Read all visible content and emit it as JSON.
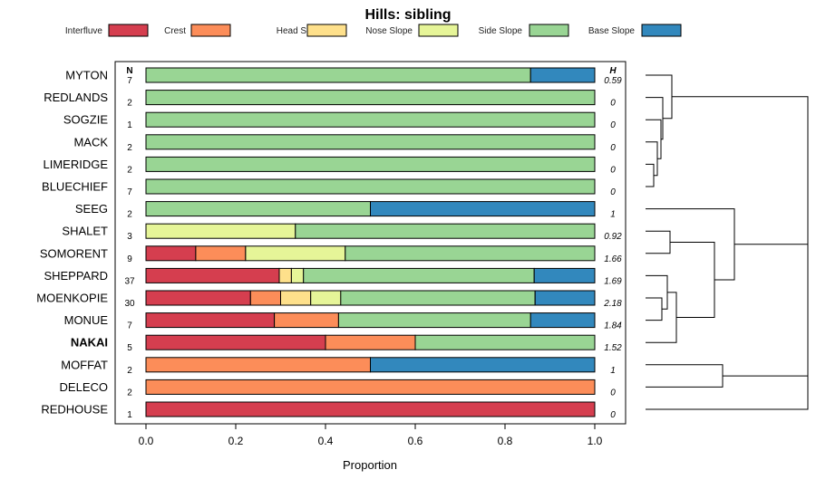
{
  "chart_data": {
    "type": "bar",
    "stacked": true,
    "orientation": "horizontal",
    "title": "Hills: sibling",
    "xlabel": "Proportion",
    "xlim": [
      0,
      1
    ],
    "xticks": [
      "0.0",
      "0.2",
      "0.4",
      "0.6",
      "0.8",
      "1.0"
    ],
    "n_header": "N",
    "h_header": "H",
    "legend": [
      {
        "name": "Interfluve",
        "color": "#D53E4F"
      },
      {
        "name": "Crest",
        "color": "#FC8D59"
      },
      {
        "name": "Head Slope",
        "color": "#FEE08B"
      },
      {
        "name": "Nose Slope",
        "color": "#E6F598"
      },
      {
        "name": "Side Slope",
        "color": "#99D594"
      },
      {
        "name": "Base Slope",
        "color": "#3288BD"
      }
    ],
    "rows": [
      {
        "name": "MYTON",
        "n": "7",
        "h": "0.59",
        "bold": false,
        "values": [
          0,
          0,
          0,
          0,
          0.857,
          0.143
        ]
      },
      {
        "name": "REDLANDS",
        "n": "2",
        "h": "0",
        "bold": false,
        "values": [
          0,
          0,
          0,
          0,
          1,
          0
        ]
      },
      {
        "name": "SOGZIE",
        "n": "1",
        "h": "0",
        "bold": false,
        "values": [
          0,
          0,
          0,
          0,
          1,
          0
        ]
      },
      {
        "name": "MACK",
        "n": "2",
        "h": "0",
        "bold": false,
        "values": [
          0,
          0,
          0,
          0,
          1,
          0
        ]
      },
      {
        "name": "LIMERIDGE",
        "n": "2",
        "h": "0",
        "bold": false,
        "values": [
          0,
          0,
          0,
          0,
          1,
          0
        ]
      },
      {
        "name": "BLUECHIEF",
        "n": "7",
        "h": "0",
        "bold": false,
        "values": [
          0,
          0,
          0,
          0,
          1,
          0
        ]
      },
      {
        "name": "SEEG",
        "n": "2",
        "h": "1",
        "bold": false,
        "values": [
          0,
          0,
          0,
          0,
          0.5,
          0.5
        ]
      },
      {
        "name": "SHALET",
        "n": "3",
        "h": "0.92",
        "bold": false,
        "values": [
          0,
          0,
          0,
          0.333,
          0.667,
          0
        ]
      },
      {
        "name": "SOMORENT",
        "n": "9",
        "h": "1.66",
        "bold": false,
        "values": [
          0.111,
          0.111,
          0,
          0.222,
          0.556,
          0
        ]
      },
      {
        "name": "SHEPPARD",
        "n": "37",
        "h": "1.69",
        "bold": false,
        "values": [
          0.297,
          0,
          0.027,
          0.027,
          0.514,
          0.135
        ]
      },
      {
        "name": "MOENKOPIE",
        "n": "30",
        "h": "2.18",
        "bold": false,
        "values": [
          0.233,
          0.067,
          0.067,
          0.067,
          0.433,
          0.133
        ]
      },
      {
        "name": "MONUE",
        "n": "7",
        "h": "1.84",
        "bold": false,
        "values": [
          0.286,
          0.143,
          0,
          0,
          0.428,
          0.143
        ]
      },
      {
        "name": "NAKAI",
        "n": "5",
        "h": "1.52",
        "bold": true,
        "values": [
          0.4,
          0.2,
          0,
          0,
          0.4,
          0
        ]
      },
      {
        "name": "MOFFAT",
        "n": "2",
        "h": "1",
        "bold": false,
        "values": [
          0,
          0.5,
          0,
          0,
          0,
          0.5
        ]
      },
      {
        "name": "DELECO",
        "n": "2",
        "h": "0",
        "bold": false,
        "values": [
          0,
          1,
          0,
          0,
          0,
          0
        ]
      },
      {
        "name": "REDHOUSE",
        "n": "1",
        "h": "0",
        "bold": false,
        "values": [
          1,
          0,
          0,
          0,
          0,
          0
        ]
      }
    ]
  }
}
